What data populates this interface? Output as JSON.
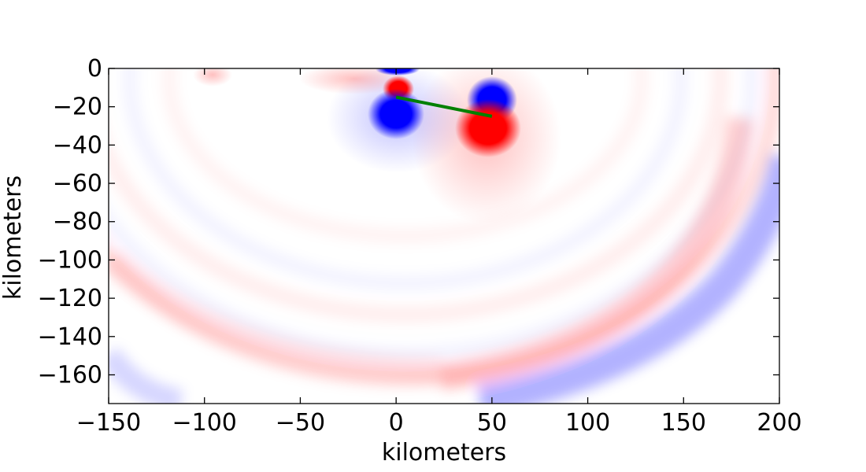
{
  "chart_data": {
    "type": "heatmap",
    "title": "",
    "xlabel": "kilometers",
    "ylabel": "kilometers",
    "xlim": [
      -150,
      200
    ],
    "ylim": [
      -175,
      0
    ],
    "xticks": [
      -150,
      -100,
      -50,
      0,
      50,
      100,
      150,
      200
    ],
    "yticks": [
      0,
      -20,
      -40,
      -60,
      -80,
      -100,
      -120,
      -140,
      -160
    ],
    "colormap": {
      "negative": "#0000ff",
      "zero": "#ffffff",
      "positive": "#ff0000"
    },
    "grid": false,
    "fault_line": {
      "color": "#008000",
      "points": [
        {
          "x": 0,
          "y": -15
        },
        {
          "x": 50,
          "y": -25
        }
      ]
    }
  }
}
